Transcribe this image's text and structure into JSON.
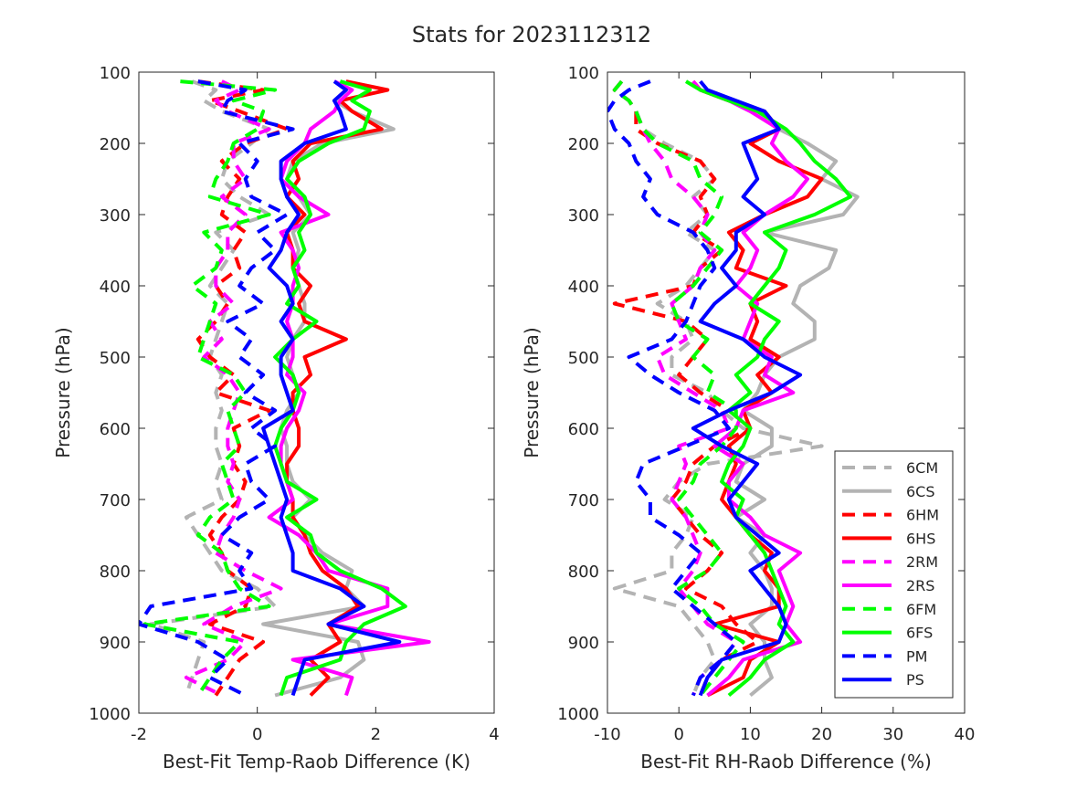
{
  "figure": {
    "title": "Stats for 2023112312"
  },
  "colors": {
    "6C": "#b3b3b3",
    "6H": "#ff0000",
    "2R": "#ff00ff",
    "6F": "#00ff00",
    "P": "#0000ff"
  },
  "legend": {
    "placement": "lower-right of right panel",
    "entries": [
      "6CM",
      "6CS",
      "6HM",
      "6HS",
      "2RM",
      "2RS",
      "6FM",
      "6FS",
      "PM",
      "PS"
    ]
  },
  "chart_data": [
    {
      "type": "line",
      "title": "",
      "xlabel": "Best-Fit Temp-Raob Difference (K)",
      "ylabel": "Pressure (hPa)",
      "xlim": [
        -2,
        4
      ],
      "ylim": [
        100,
        1000
      ],
      "y_reversed": true,
      "xticks": [
        -2,
        0,
        2,
        4
      ],
      "yticks": [
        100,
        200,
        300,
        400,
        500,
        600,
        700,
        800,
        900,
        1000
      ],
      "grid": false,
      "levels": [
        113,
        125,
        140,
        155,
        180,
        200,
        225,
        250,
        275,
        300,
        325,
        350,
        375,
        400,
        425,
        450,
        475,
        500,
        525,
        550,
        575,
        600,
        625,
        650,
        675,
        700,
        725,
        750,
        775,
        800,
        825,
        850,
        875,
        900,
        925,
        950,
        975
      ],
      "series": [
        {
          "name": "6CM",
          "color": "6C",
          "dash": true,
          "values": [
            -1.1,
            -0.7,
            -0.9,
            -0.6,
            0.2,
            -0.1,
            -0.5,
            -0.6,
            -0.3,
            0.2,
            -0.7,
            -0.4,
            -0.6,
            -0.8,
            -0.5,
            -0.6,
            -0.7,
            -0.8,
            -0.6,
            -0.7,
            -0.6,
            -0.7,
            -0.7,
            -0.6,
            -0.7,
            -0.6,
            -1.2,
            -1.0,
            -0.8,
            -0.6,
            0.0,
            0.3,
            -1.8,
            -0.9,
            -1.0,
            -1.1,
            -1.2
          ]
        },
        {
          "name": "6CS",
          "color": "6C",
          "dash": false,
          "values": [
            1.4,
            1.5,
            1.3,
            1.6,
            2.3,
            1.1,
            0.6,
            0.5,
            0.7,
            0.9,
            0.6,
            0.7,
            0.6,
            0.7,
            0.8,
            0.8,
            0.6,
            0.5,
            0.6,
            0.7,
            0.5,
            0.4,
            0.5,
            0.5,
            0.6,
            0.9,
            0.6,
            0.8,
            1.1,
            1.6,
            1.5,
            1.8,
            0.1,
            1.7,
            1.8,
            1.4,
            0.3
          ]
        },
        {
          "name": "6HM",
          "color": "6H",
          "dash": true,
          "values": [
            -1.0,
            0.1,
            -0.8,
            -0.3,
            0.5,
            -0.2,
            -0.6,
            -0.3,
            -0.5,
            -0.6,
            -0.2,
            -0.4,
            -0.3,
            -0.7,
            -0.5,
            -0.7,
            -1.0,
            -0.8,
            -0.4,
            -0.7,
            0.2,
            -0.4,
            -0.3,
            -0.4,
            -0.2,
            -0.3,
            -0.6,
            -0.8,
            -0.6,
            -0.5,
            -0.1,
            -0.2,
            -0.8,
            0.1,
            -0.3,
            -0.5,
            -0.7
          ]
        },
        {
          "name": "6HS",
          "color": "6H",
          "dash": false,
          "values": [
            1.5,
            2.2,
            1.4,
            1.6,
            2.1,
            0.9,
            0.6,
            0.7,
            0.5,
            0.8,
            0.5,
            0.6,
            0.6,
            0.9,
            0.7,
            0.8,
            1.5,
            0.8,
            0.9,
            0.6,
            0.6,
            0.7,
            0.7,
            0.5,
            0.5,
            0.6,
            0.6,
            0.8,
            0.9,
            1.1,
            1.5,
            1.7,
            1.2,
            1.4,
            0.9,
            1.2,
            0.9
          ]
        },
        {
          "name": "2RM",
          "color": "2R",
          "dash": true,
          "values": [
            -0.6,
            -0.3,
            -0.7,
            -0.5,
            0.2,
            -0.4,
            -0.4,
            -0.2,
            -0.6,
            -0.2,
            -0.5,
            -0.5,
            -0.7,
            -0.7,
            -0.4,
            -0.8,
            -0.6,
            -0.9,
            -0.5,
            -0.3,
            -0.4,
            -0.5,
            -0.5,
            -0.4,
            -0.5,
            -0.3,
            -0.4,
            -0.6,
            -0.7,
            -0.2,
            0.4,
            -0.4,
            -0.9,
            -0.2,
            -0.5,
            -1.2,
            -0.6
          ]
        },
        {
          "name": "2RS",
          "color": "2R",
          "dash": false,
          "values": [
            1.3,
            1.6,
            1.4,
            1.3,
            0.9,
            0.8,
            0.5,
            0.4,
            0.7,
            1.2,
            0.4,
            0.6,
            0.7,
            0.6,
            0.6,
            0.5,
            0.6,
            0.6,
            0.5,
            0.8,
            0.7,
            0.5,
            0.4,
            0.4,
            0.5,
            0.6,
            0.2,
            0.7,
            1.0,
            1.2,
            2.2,
            2.2,
            1.2,
            2.9,
            0.6,
            1.6,
            1.5
          ]
        },
        {
          "name": "6FM",
          "color": "6F",
          "dash": true,
          "values": [
            -1.3,
            0.3,
            -0.4,
            0.1,
            0.0,
            -0.4,
            -0.5,
            -0.7,
            -0.8,
            0.2,
            -0.9,
            -0.6,
            -0.7,
            -1.1,
            -0.7,
            -0.8,
            -0.9,
            -1.0,
            -0.4,
            -0.2,
            -0.5,
            -0.4,
            -0.3,
            -0.6,
            -0.5,
            -0.4,
            -0.8,
            -1.0,
            -0.6,
            -0.5,
            -0.3,
            0.2,
            -1.9,
            -0.3,
            -0.6,
            -0.8,
            -1.0
          ]
        },
        {
          "name": "6FS",
          "color": "6F",
          "dash": false,
          "values": [
            1.4,
            1.9,
            1.6,
            1.9,
            1.8,
            1.2,
            0.7,
            0.5,
            0.8,
            0.9,
            0.7,
            0.8,
            0.6,
            0.7,
            0.5,
            1.0,
            0.6,
            0.3,
            0.6,
            0.7,
            0.6,
            0.4,
            0.3,
            0.4,
            0.5,
            1.0,
            0.5,
            0.9,
            1.0,
            1.4,
            2.1,
            2.5,
            1.8,
            1.5,
            1.4,
            0.5,
            0.4
          ]
        },
        {
          "name": "PM",
          "color": "P",
          "dash": true,
          "values": [
            -1.0,
            -0.2,
            -0.5,
            -0.6,
            0.6,
            -0.3,
            0.0,
            -0.2,
            -0.1,
            0.5,
            0.0,
            0.3,
            -0.1,
            -0.3,
            0.1,
            -0.5,
            -0.1,
            -0.3,
            0.1,
            -0.2,
            0.3,
            -0.1,
            0.3,
            -0.2,
            -0.1,
            0.2,
            -0.3,
            -0.6,
            -0.1,
            -0.3,
            -0.1,
            -1.8,
            -2.0,
            -1.0,
            -0.5,
            -0.8,
            -0.2
          ]
        },
        {
          "name": "PS",
          "color": "P",
          "dash": false,
          "values": [
            1.3,
            1.5,
            1.3,
            1.4,
            1.5,
            0.8,
            0.4,
            0.4,
            0.5,
            0.7,
            0.5,
            0.4,
            0.2,
            0.5,
            0.6,
            0.4,
            0.6,
            0.4,
            0.4,
            0.5,
            0.6,
            0.1,
            0.2,
            0.3,
            0.4,
            0.5,
            0.4,
            0.5,
            0.6,
            0.6,
            1.4,
            1.8,
            1.2,
            2.4,
            0.8,
            0.7,
            0.6
          ]
        }
      ]
    },
    {
      "type": "line",
      "title": "",
      "xlabel": "Best-Fit RH-Raob Difference (%)",
      "ylabel": "Pressure (hPa)",
      "xlim": [
        -10,
        40
      ],
      "ylim": [
        100,
        1000
      ],
      "y_reversed": true,
      "xticks": [
        -10,
        0,
        10,
        20,
        30,
        40
      ],
      "yticks": [
        100,
        200,
        300,
        400,
        500,
        600,
        700,
        800,
        900,
        1000
      ],
      "grid": false,
      "levels": [
        113,
        125,
        140,
        155,
        180,
        200,
        225,
        250,
        275,
        300,
        325,
        350,
        375,
        400,
        425,
        450,
        475,
        500,
        525,
        550,
        575,
        600,
        625,
        650,
        675,
        700,
        725,
        750,
        775,
        800,
        825,
        850,
        875,
        900,
        925,
        950,
        975
      ],
      "series": [
        {
          "name": "6CM",
          "color": "6C",
          "dash": true,
          "values": [
            -8,
            -9,
            -7,
            -6,
            -5,
            -2,
            3,
            5,
            2,
            4,
            1,
            5,
            3,
            1,
            -3,
            1,
            2,
            -1,
            -1,
            4,
            6,
            9,
            20,
            4,
            0,
            -2,
            2,
            1,
            -1,
            -1,
            -9,
            0,
            2,
            4,
            5,
            3,
            2
          ]
        },
        {
          "name": "6CS",
          "color": "6C",
          "dash": false,
          "values": [
            2,
            3,
            7,
            12,
            14,
            18,
            22,
            20,
            25,
            23,
            12,
            22,
            21,
            17,
            16,
            19,
            19,
            14,
            12,
            11,
            9,
            13,
            13,
            9,
            8,
            12,
            8,
            12,
            10,
            12,
            13,
            13,
            10,
            12,
            12,
            13,
            10
          ]
        },
        {
          "name": "6HM",
          "color": "6H",
          "dash": true,
          "values": [
            -8,
            -9,
            -7,
            -6,
            -6,
            -3,
            3,
            5,
            3,
            4,
            2,
            6,
            3,
            2,
            -9,
            1,
            4,
            2,
            0,
            3,
            7,
            10,
            5,
            2,
            1,
            -1,
            1,
            3,
            6,
            4,
            1,
            6,
            8,
            11,
            6,
            4,
            3
          ]
        },
        {
          "name": "6HS",
          "color": "6H",
          "dash": false,
          "values": [
            2,
            3,
            7,
            12,
            14,
            10,
            14,
            20,
            18,
            12,
            7,
            9,
            8,
            15,
            10,
            11,
            10,
            14,
            11,
            13,
            9,
            10,
            7,
            8,
            7,
            6,
            8,
            10,
            13,
            12,
            14,
            14,
            5,
            14,
            10,
            9,
            4
          ]
        },
        {
          "name": "2RM",
          "color": "2R",
          "dash": true,
          "values": [
            -8,
            -9,
            -7,
            -6,
            -5,
            -4,
            -2,
            -1,
            2,
            4,
            3,
            5,
            3,
            2,
            -1,
            0,
            1,
            -3,
            -2,
            2,
            6,
            7,
            0,
            1,
            0,
            -1,
            1,
            2,
            3,
            2,
            0,
            2,
            4,
            8,
            6,
            3,
            2
          ]
        },
        {
          "name": "2RS",
          "color": "2R",
          "dash": false,
          "values": [
            2,
            3,
            7,
            10,
            14,
            13,
            15,
            18,
            16,
            12,
            9,
            11,
            10,
            8,
            11,
            10,
            9,
            13,
            12,
            16,
            9,
            8,
            5,
            9,
            7,
            7,
            10,
            12,
            17,
            14,
            15,
            16,
            15,
            17,
            9,
            7,
            4
          ]
        },
        {
          "name": "6FM",
          "color": "6F",
          "dash": true,
          "values": [
            -8,
            -9,
            -7,
            -6,
            -5,
            -3,
            2,
            3,
            6,
            5,
            3,
            6,
            4,
            2,
            -1,
            0,
            4,
            2,
            5,
            4,
            8,
            8,
            6,
            3,
            2,
            0,
            2,
            4,
            6,
            4,
            0,
            3,
            5,
            9,
            7,
            5,
            3
          ]
        },
        {
          "name": "6FS",
          "color": "6F",
          "dash": false,
          "values": [
            1,
            3,
            7,
            11,
            15,
            17,
            19,
            22,
            24,
            19,
            12,
            15,
            14,
            12,
            10,
            14,
            12,
            11,
            8,
            10,
            7,
            10,
            9,
            7,
            6,
            9,
            8,
            10,
            12,
            13,
            14,
            15,
            14,
            16,
            12,
            10,
            7
          ]
        },
        {
          "name": "PM",
          "color": "P",
          "dash": true,
          "values": [
            -4,
            -7,
            -9,
            -10,
            -9,
            -7,
            -6,
            -4,
            -5,
            -3,
            2,
            4,
            5,
            3,
            2,
            1,
            -1,
            -7,
            -4,
            0,
            5,
            7,
            1,
            -5,
            -6,
            -4,
            -4,
            0,
            3,
            1,
            -1,
            2,
            5,
            8,
            6,
            3,
            2
          ]
        },
        {
          "name": "PS",
          "color": "P",
          "dash": false,
          "values": [
            3,
            4,
            8,
            12,
            14,
            9,
            10,
            11,
            9,
            12,
            8,
            8,
            6,
            8,
            5,
            3,
            9,
            12,
            17,
            13,
            7,
            2,
            6,
            11,
            9,
            7,
            8,
            11,
            14,
            10,
            12,
            14,
            15,
            14,
            6,
            4,
            3
          ]
        }
      ]
    }
  ]
}
